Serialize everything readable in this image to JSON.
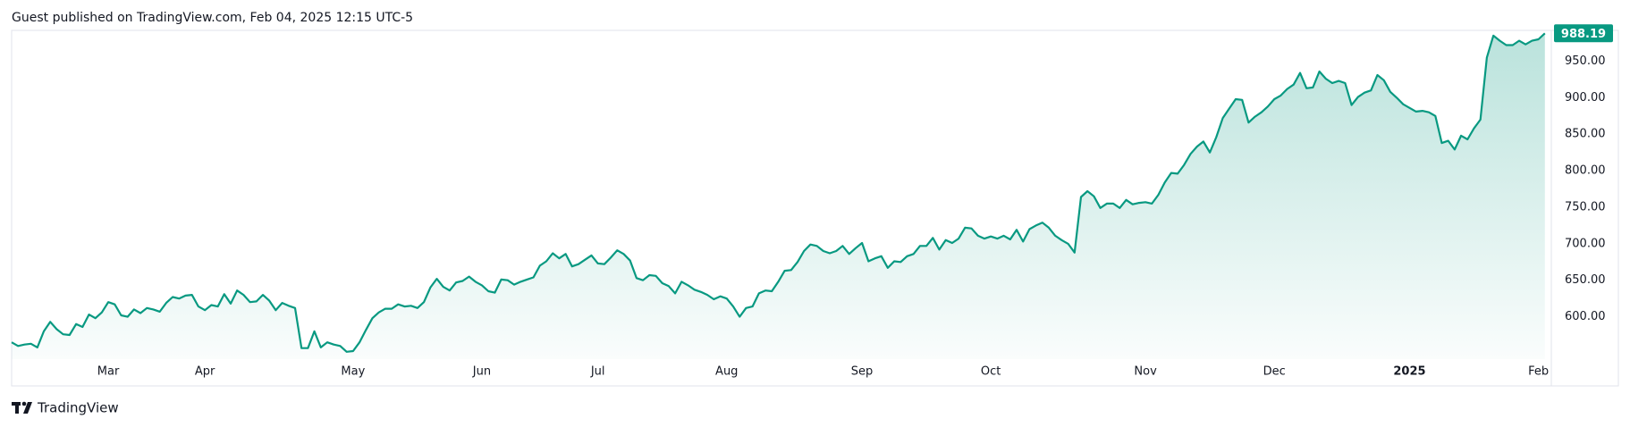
{
  "chart_data": {
    "type": "area",
    "title": "Guest published on TradingView.com, Feb 04, 2025 12:15 UTC-5",
    "source": "TradingView",
    "color": "#089981",
    "grid": false,
    "values": [
      565,
      560,
      562,
      563,
      558,
      580,
      593,
      583,
      576,
      575,
      590,
      586,
      603,
      598,
      606,
      620,
      617,
      602,
      600,
      610,
      605,
      612,
      610,
      607,
      619,
      627,
      625,
      629,
      630,
      614,
      609,
      616,
      614,
      631,
      618,
      636,
      630,
      620,
      621,
      630,
      622,
      609,
      619,
      615,
      612,
      557,
      557,
      580,
      558,
      565,
      562,
      560,
      552,
      553,
      565,
      582,
      598,
      606,
      611,
      611,
      617,
      614,
      615,
      612,
      620,
      640,
      652,
      641,
      636,
      647,
      649,
      655,
      648,
      643,
      635,
      633,
      651,
      650,
      644,
      648,
      651,
      654,
      670,
      676,
      687,
      680,
      686,
      669,
      672,
      678,
      684,
      673,
      672,
      681,
      691,
      686,
      677,
      653,
      650,
      657,
      656,
      646,
      642,
      632,
      648,
      643,
      637,
      634,
      630,
      624,
      628,
      625,
      614,
      600,
      612,
      614,
      632,
      636,
      635,
      648,
      663,
      664,
      675,
      690,
      699,
      697,
      690,
      687,
      690,
      697,
      686,
      694,
      701,
      676,
      680,
      683,
      667,
      676,
      675,
      683,
      686,
      697,
      697,
      708,
      692,
      705,
      701,
      707,
      722,
      721,
      711,
      707,
      710,
      707,
      711,
      706,
      719,
      703,
      720,
      725,
      729,
      722,
      711,
      705,
      700,
      688,
      764,
      772,
      765,
      749,
      755,
      755,
      749,
      760,
      754,
      756,
      757,
      755,
      767,
      784,
      797,
      796,
      808,
      823,
      833,
      840,
      825,
      846,
      872,
      885,
      898,
      897,
      866,
      874,
      880,
      888,
      898,
      903,
      912,
      918,
      934,
      913,
      914,
      936,
      926,
      920,
      923,
      920,
      890,
      901,
      907,
      910,
      931,
      924,
      908,
      900,
      891,
      886,
      881,
      882,
      880,
      875,
      838,
      841,
      829,
      848,
      843,
      858,
      870,
      955,
      985,
      978,
      972,
      972,
      978,
      973,
      978,
      980,
      988.19
    ],
    "xlim": [
      0,
      239
    ],
    "xticks": [
      {
        "value": 15,
        "label": "Mar"
      },
      {
        "value": 30,
        "label": "Apr"
      },
      {
        "value": 53,
        "label": "May"
      },
      {
        "value": 73,
        "label": "Jun"
      },
      {
        "value": 91,
        "label": "Jul"
      },
      {
        "value": 111,
        "label": "Aug"
      },
      {
        "value": 132,
        "label": "Sep"
      },
      {
        "value": 152,
        "label": "Oct"
      },
      {
        "value": 176,
        "label": "Nov"
      },
      {
        "value": 196,
        "label": "Dec"
      },
      {
        "value": 217,
        "label": "2025"
      },
      {
        "value": 237,
        "label": "Feb"
      }
    ],
    "ylim": [
      542,
      991
    ],
    "yticks": [
      {
        "value": 600,
        "label": "600.00"
      },
      {
        "value": 650,
        "label": "650.00"
      },
      {
        "value": 700,
        "label": "700.00"
      },
      {
        "value": 750,
        "label": "750.00"
      },
      {
        "value": 800,
        "label": "800.00"
      },
      {
        "value": 850,
        "label": "850.00"
      },
      {
        "value": 900,
        "label": "900.00"
      },
      {
        "value": 950,
        "label": "950.00"
      }
    ]
  }
}
